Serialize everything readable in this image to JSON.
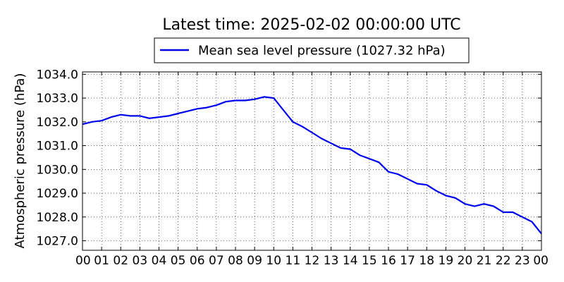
{
  "chart_data": {
    "type": "line",
    "title": "Latest time: 2025-02-02 00:00:00 UTC",
    "xlabel": "",
    "ylabel": "Atmospheric pressure (hPa)",
    "xlim": [
      0,
      24
    ],
    "ylim": [
      1026.6,
      1034.1
    ],
    "grid": true,
    "legend_position": "top-center",
    "x_tick_labels": [
      "00",
      "01",
      "02",
      "03",
      "04",
      "05",
      "06",
      "07",
      "08",
      "09",
      "10",
      "11",
      "12",
      "13",
      "14",
      "15",
      "16",
      "17",
      "18",
      "19",
      "20",
      "21",
      "22",
      "23",
      "00"
    ],
    "y_ticks": [
      1027.0,
      1028.0,
      1029.0,
      1030.0,
      1031.0,
      1032.0,
      1033.0,
      1034.0
    ],
    "y_tick_labels": [
      "1027.0",
      "1028.0",
      "1029.0",
      "1030.0",
      "1031.0",
      "1032.0",
      "1033.0",
      "1034.0"
    ],
    "series": [
      {
        "name": "Mean sea level pressure (1027.32 hPa)",
        "color": "#0000ee",
        "x": [
          0,
          0.5,
          1,
          1.5,
          2,
          2.5,
          3,
          3.5,
          4,
          4.5,
          5,
          5.5,
          6,
          6.5,
          7,
          7.5,
          8,
          8.5,
          9,
          9.5,
          10,
          10.5,
          11,
          11.5,
          12,
          12.5,
          13,
          13.5,
          14,
          14.5,
          15,
          15.5,
          16,
          16.5,
          17,
          17.5,
          18,
          18.5,
          19,
          19.5,
          20,
          20.5,
          21,
          21.5,
          22,
          22.5,
          23,
          23.5,
          24
        ],
        "values": [
          1031.9,
          1032.0,
          1032.05,
          1032.2,
          1032.3,
          1032.25,
          1032.25,
          1032.15,
          1032.2,
          1032.25,
          1032.35,
          1032.45,
          1032.55,
          1032.6,
          1032.7,
          1032.85,
          1032.9,
          1032.9,
          1032.95,
          1033.05,
          1033.0,
          1032.5,
          1032.0,
          1031.8,
          1031.55,
          1031.3,
          1031.1,
          1030.9,
          1030.85,
          1030.6,
          1030.45,
          1030.3,
          1029.9,
          1029.8,
          1029.6,
          1029.4,
          1029.35,
          1029.1,
          1028.9,
          1028.8,
          1028.55,
          1028.45,
          1028.55,
          1028.45,
          1028.2,
          1028.2,
          1028.0,
          1027.8,
          1027.3
        ]
      }
    ]
  }
}
